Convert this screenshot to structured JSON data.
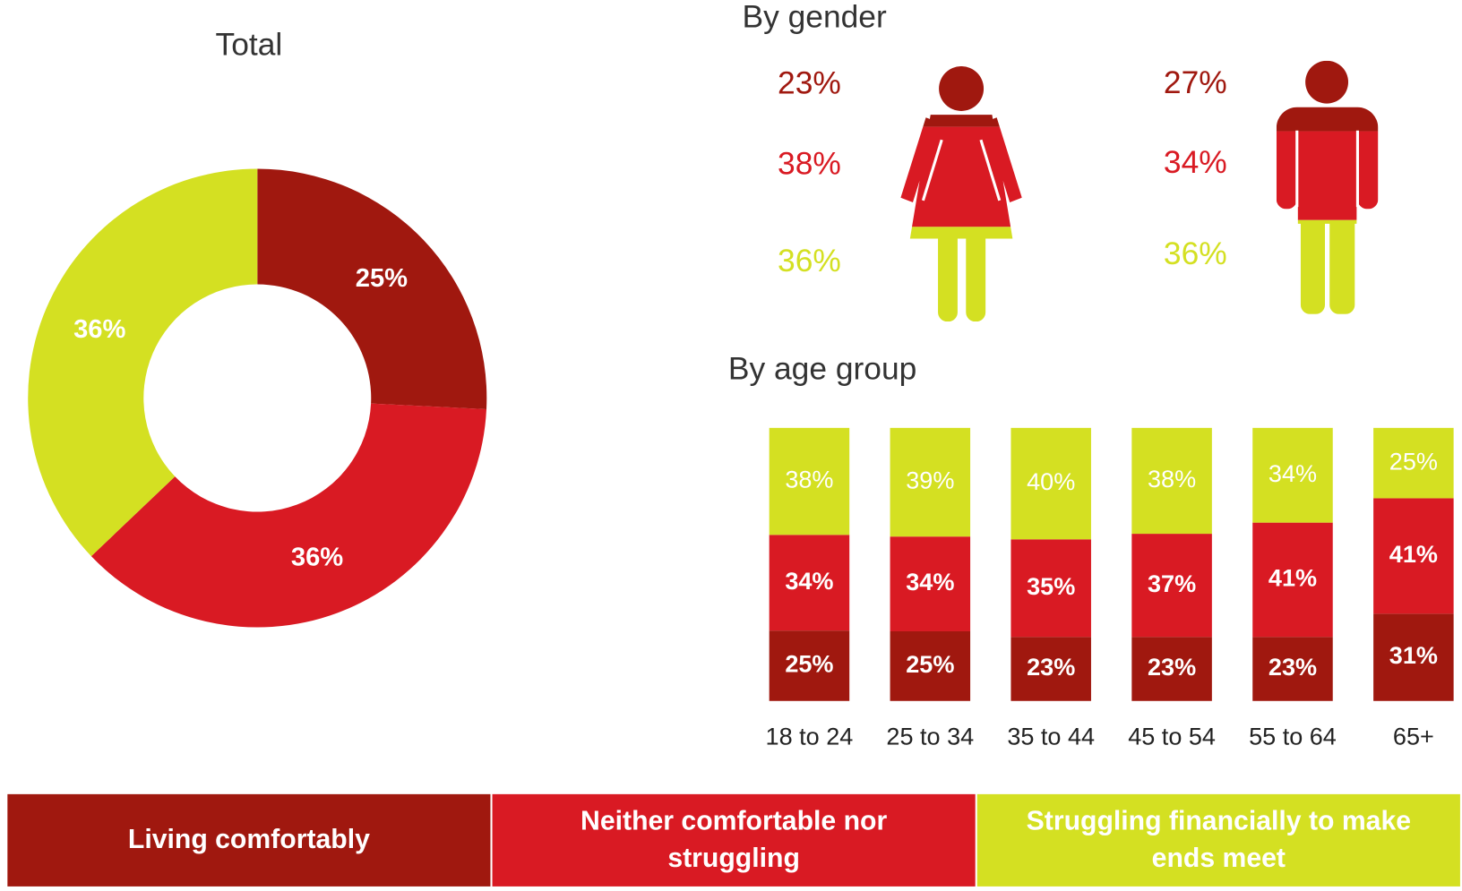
{
  "chart_data": [
    {
      "type": "pie",
      "donut": true,
      "title": "Total",
      "values": [
        25,
        36,
        36
      ],
      "value_labels": [
        "25%",
        "36%",
        "36%"
      ],
      "colors": [
        "#a0180f",
        "#d91a23",
        "#d4e022"
      ]
    },
    {
      "type": "pictogram",
      "title": "By gender",
      "categories": [
        null,
        null
      ],
      "series": [
        {
          "name": "Living comfortably",
          "color": "#a0180f",
          "values": [
            23,
            27
          ],
          "value_labels": [
            "23%",
            "27%"
          ]
        },
        {
          "name": "Neither comfortable nor struggling",
          "color": "#d91a23",
          "values": [
            38,
            34
          ],
          "value_labels": [
            "38%",
            "34%"
          ]
        },
        {
          "name": "Struggling financially to make ends meet",
          "color": "#d4e022",
          "values": [
            36,
            36
          ],
          "value_labels": [
            "36%",
            "36%"
          ]
        }
      ]
    },
    {
      "type": "bar",
      "stacked": true,
      "title": "By age group",
      "categories": [
        "18 to 24",
        "25 to 34",
        "35 to 44",
        "45 to 54",
        "55 to 64",
        "65+"
      ],
      "series": [
        {
          "name": "Living comfortably",
          "color": "#a0180f",
          "values": [
            25,
            25,
            23,
            23,
            23,
            31
          ],
          "value_labels": [
            "25%",
            "25%",
            "23%",
            "23%",
            "23%",
            "31%"
          ]
        },
        {
          "name": "Neither comfortable nor struggling",
          "color": "#d91a23",
          "values": [
            34,
            34,
            35,
            37,
            41,
            41
          ],
          "value_labels": [
            "34%",
            "34%",
            "35%",
            "37%",
            "41%",
            "41%"
          ]
        },
        {
          "name": "Struggling financially to make ends meet",
          "color": "#d4e022",
          "values": [
            38,
            39,
            40,
            38,
            34,
            25
          ],
          "value_labels": [
            "38%",
            "39%",
            "40%",
            "38%",
            "34%",
            "25%"
          ]
        }
      ]
    }
  ]
}
